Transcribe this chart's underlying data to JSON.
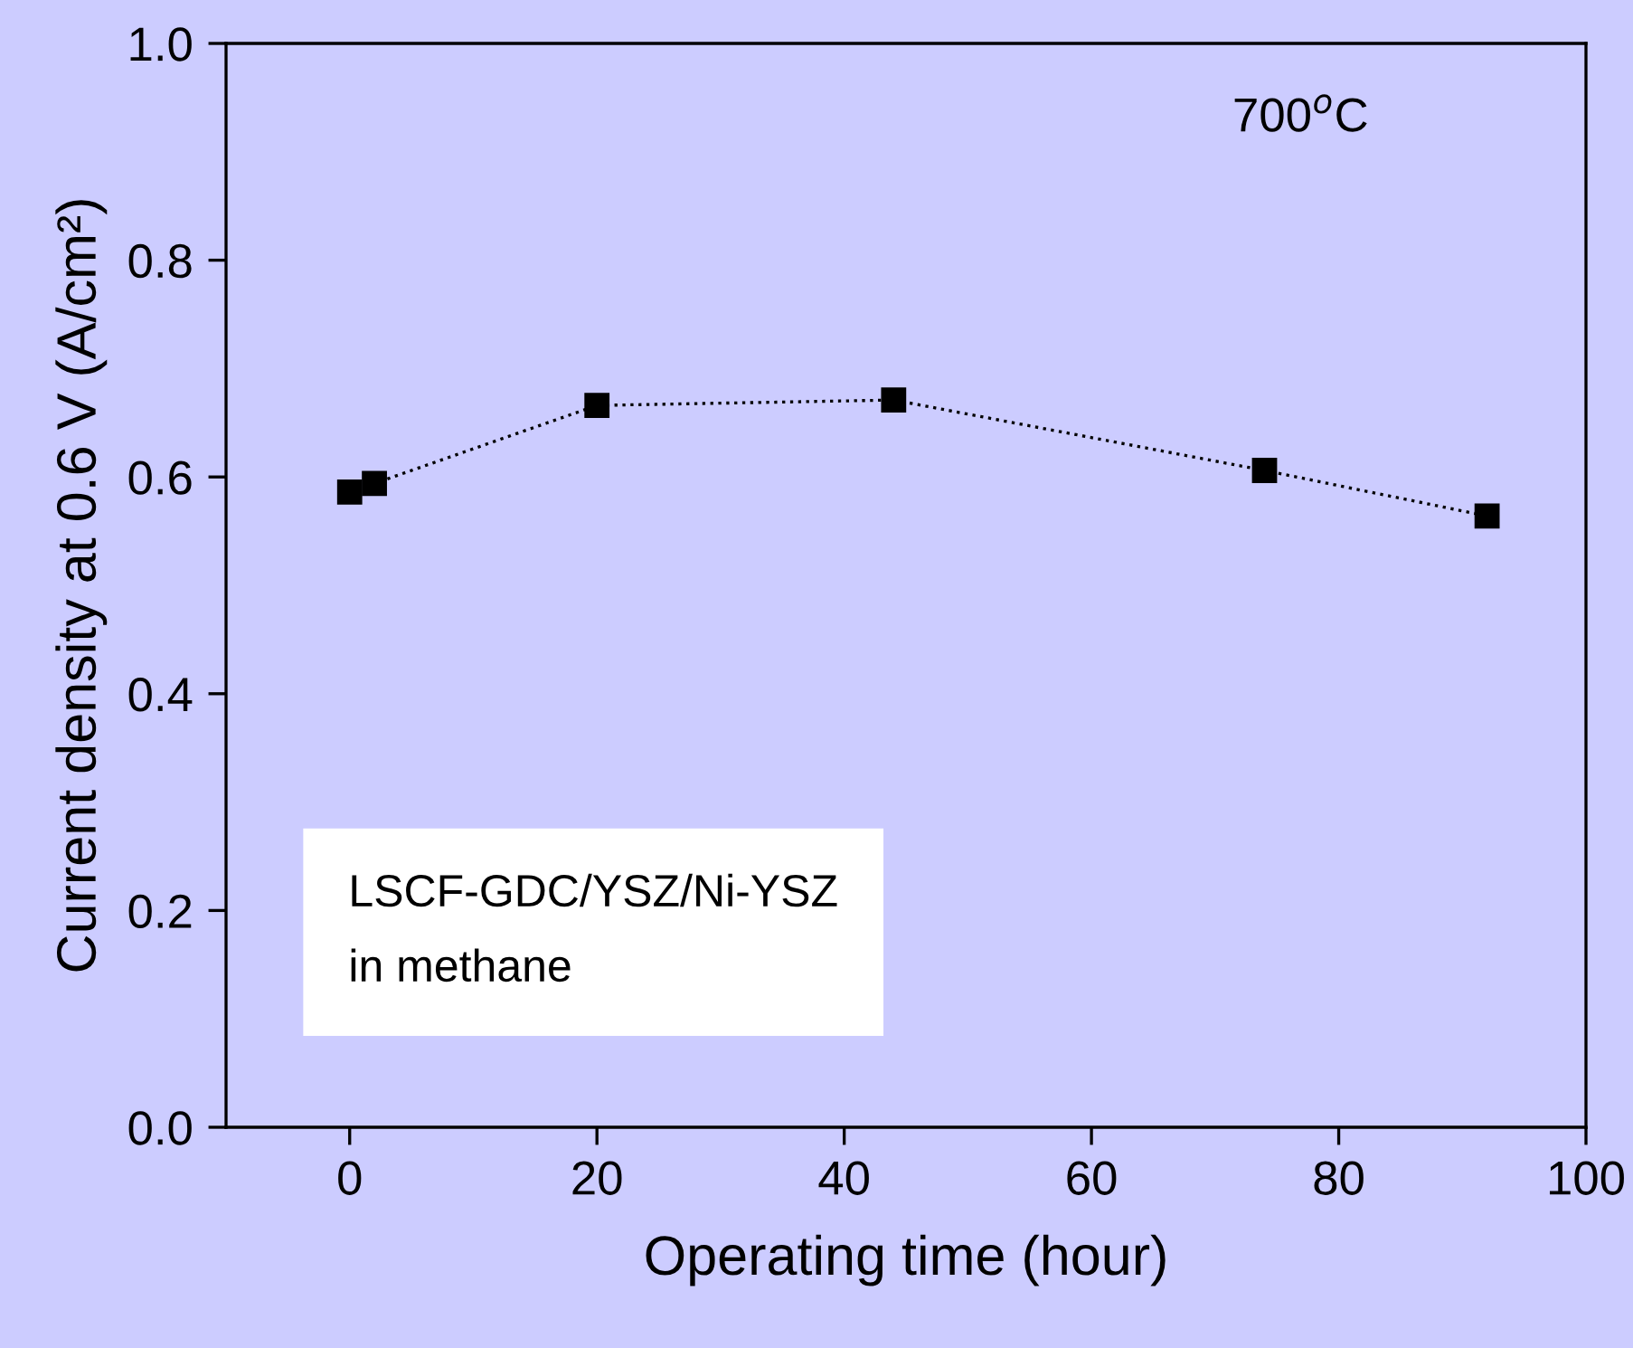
{
  "chart_data": {
    "type": "line",
    "xlabel": "Operating time (hour)",
    "ylabel": "Current density at 0.6 V (A/cm²)",
    "x": [
      0,
      2,
      20,
      44,
      74,
      92
    ],
    "series": [
      {
        "color": "#000000",
        "values": [
          0.586,
          0.594,
          0.666,
          0.671,
          0.606,
          0.564
        ]
      }
    ],
    "xlim": [
      -10,
      100
    ],
    "xticks": [
      0,
      20,
      40,
      60,
      80,
      100
    ],
    "ylim": [
      0,
      1
    ],
    "yticks": [
      {
        "value": 0,
        "label": "0.0"
      },
      {
        "value": 0.2,
        "label": "0.2"
      },
      {
        "value": 0.4,
        "label": "0.4"
      },
      {
        "value": 0.6,
        "label": "0.6"
      },
      {
        "value": 0.8,
        "label": "0.8"
      },
      {
        "value": 1,
        "label": "1.0"
      }
    ],
    "marker": "square",
    "line_style": "dotted",
    "grid": false,
    "annotations": [
      "700$^{o}$C",
      "LSCF-GDC/YSZ/Ni-YSZ\nin methane"
    ]
  }
}
